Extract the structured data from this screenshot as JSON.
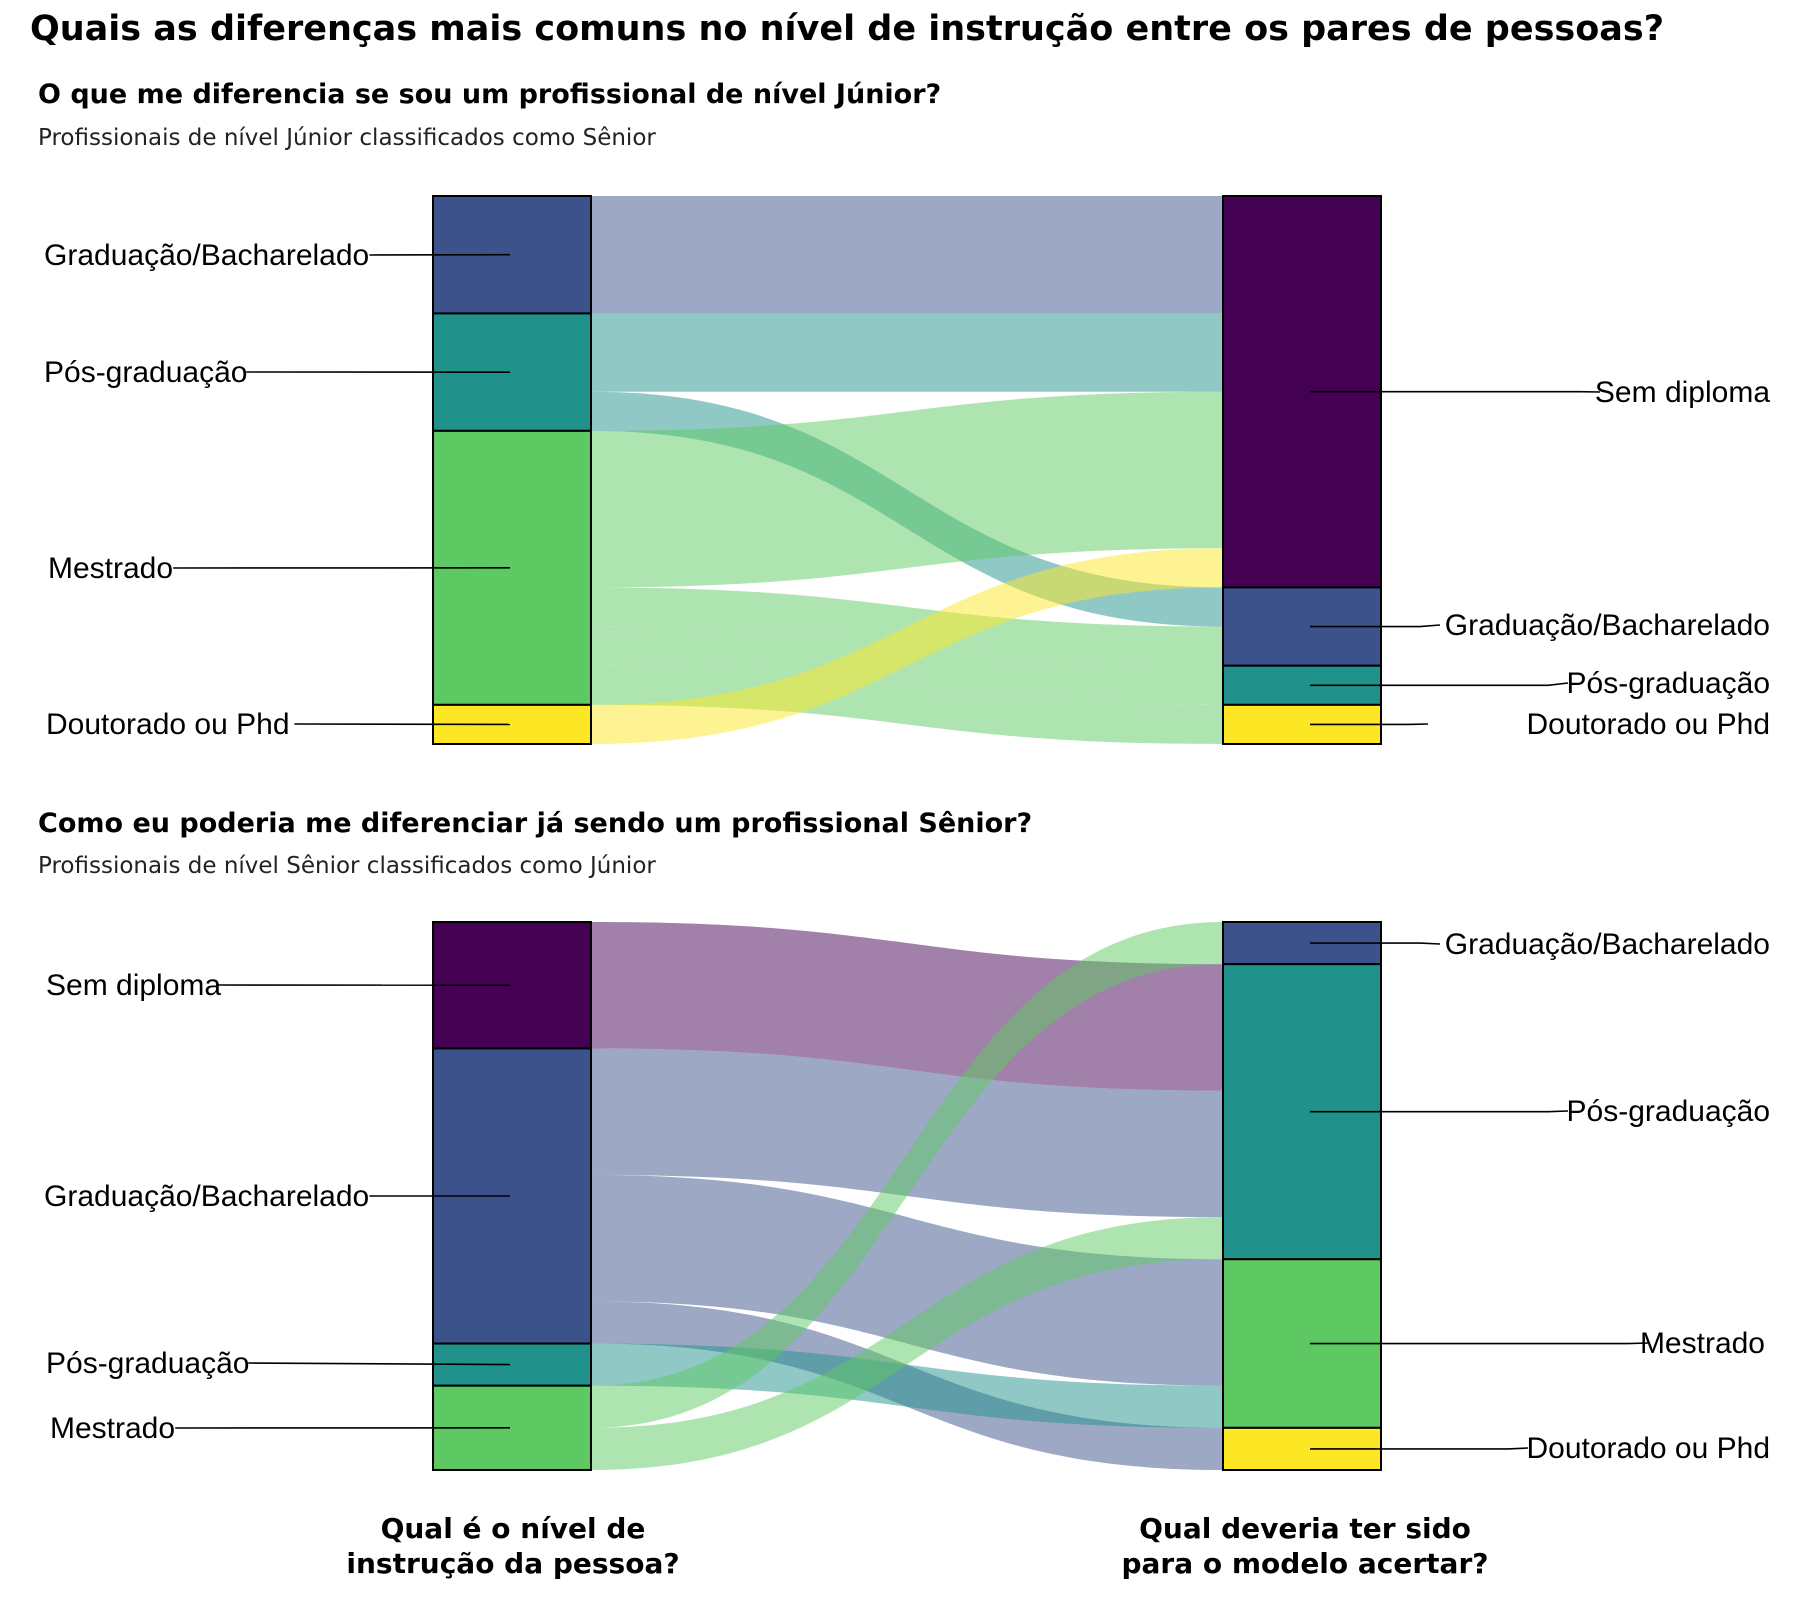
{
  "title": "Quais as diferenças mais comuns no nível de instrução entre os pares de pessoas?",
  "axis_labels": {
    "left": [
      "Qual é o nível de",
      "instrução da pessoa?"
    ],
    "right": [
      "Qual deveria ter sido",
      "para o modelo acertar?"
    ]
  },
  "colors": {
    "Sem diploma": "#440154",
    "Graduação/Bacharelado": "#3b528b",
    "Pós-graduação": "#21918c",
    "Mestrado": "#5ec962",
    "Doutorado ou Phd": "#fde725"
  },
  "chart_data": [
    {
      "type": "sankey",
      "title": "O que me diferencia se sou um profissional de nível Júnior?",
      "subtitle": "Profissionais de nível Júnior classificados como Sênior",
      "left_nodes": [
        {
          "name": "Graduação/Bacharelado",
          "value": 6
        },
        {
          "name": "Pós-graduação",
          "value": 6
        },
        {
          "name": "Mestrado",
          "value": 14
        },
        {
          "name": "Doutorado ou Phd",
          "value": 2
        }
      ],
      "right_nodes": [
        {
          "name": "Sem diploma",
          "value": 20
        },
        {
          "name": "Graduação/Bacharelado",
          "value": 4
        },
        {
          "name": "Pós-graduação",
          "value": 2
        },
        {
          "name": "Doutorado ou Phd",
          "value": 2
        }
      ],
      "links": [
        {
          "source": "Graduação/Bacharelado",
          "target": "Sem diploma",
          "value": 6
        },
        {
          "source": "Pós-graduação",
          "target": "Sem diploma",
          "value": 4
        },
        {
          "source": "Pós-graduação",
          "target": "Graduação/Bacharelado",
          "value": 2
        },
        {
          "source": "Mestrado",
          "target": "Sem diploma",
          "value": 8
        },
        {
          "source": "Mestrado",
          "target": "Graduação/Bacharelado",
          "value": 2
        },
        {
          "source": "Mestrado",
          "target": "Pós-graduação",
          "value": 2
        },
        {
          "source": "Mestrado",
          "target": "Doutorado ou Phd",
          "value": 2
        },
        {
          "source": "Doutorado ou Phd",
          "target": "Sem diploma",
          "value": 2
        }
      ]
    },
    {
      "type": "sankey",
      "title": "Como eu poderia me diferenciar já sendo um profissional Sênior?",
      "subtitle": "Profissionais de nível Sênior classificados como Júnior",
      "left_nodes": [
        {
          "name": "Sem diploma",
          "value": 6
        },
        {
          "name": "Graduação/Bacharelado",
          "value": 14
        },
        {
          "name": "Pós-graduação",
          "value": 2
        },
        {
          "name": "Mestrado",
          "value": 4
        }
      ],
      "right_nodes": [
        {
          "name": "Graduação/Bacharelado",
          "value": 2
        },
        {
          "name": "Pós-graduação",
          "value": 14
        },
        {
          "name": "Mestrado",
          "value": 8
        },
        {
          "name": "Doutorado ou Phd",
          "value": 2
        }
      ],
      "links": [
        {
          "source": "Sem diploma",
          "target": "Pós-graduação",
          "value": 6
        },
        {
          "source": "Graduação/Bacharelado",
          "target": "Pós-graduação",
          "value": 6
        },
        {
          "source": "Graduação/Bacharelado",
          "target": "Mestrado",
          "value": 6
        },
        {
          "source": "Graduação/Bacharelado",
          "target": "Doutorado ou Phd",
          "value": 2
        },
        {
          "source": "Pós-graduação",
          "target": "Mestrado",
          "value": 2
        },
        {
          "source": "Mestrado",
          "target": "Graduação/Bacharelado",
          "value": 2
        },
        {
          "source": "Mestrado",
          "target": "Pós-graduação",
          "value": 2
        }
      ]
    }
  ]
}
